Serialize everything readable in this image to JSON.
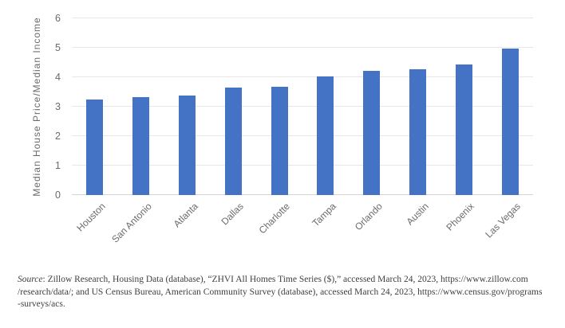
{
  "chart_data": {
    "type": "bar",
    "categories": [
      "Houston",
      "San Antonio",
      "Atlanta",
      "Dallas",
      "Charlotte",
      "Tampa",
      "Orlando",
      "Austin",
      "Phoenix",
      "Las Vegas"
    ],
    "values": [
      3.25,
      3.33,
      3.38,
      3.64,
      3.67,
      4.04,
      4.22,
      4.26,
      4.44,
      4.98
    ],
    "title": "",
    "xlabel": "",
    "ylabel": "Median House Price/Median Income",
    "ylim": [
      0,
      6
    ],
    "yticks": [
      0,
      1,
      2,
      3,
      4,
      5,
      6
    ],
    "grid": true,
    "legend": "none",
    "bar_color": "#4472C4",
    "gridline_color": "#e7e7e7",
    "axis_line_color": "#d5d5d5",
    "tick_label_color": "#6b6b6b"
  },
  "footer": {
    "source_label": "Source",
    "line1": ": Zillow Research, Housing Data (database), “ZHVI All Homes Time Series ($),” accessed March 24, 2023, https://www.zillow.com",
    "line2": "/research/data/; and US Census Bureau, American Community Survey (database), accessed March 24, 2023, https://www.census.gov/programs",
    "line3": "-surveys/acs."
  }
}
